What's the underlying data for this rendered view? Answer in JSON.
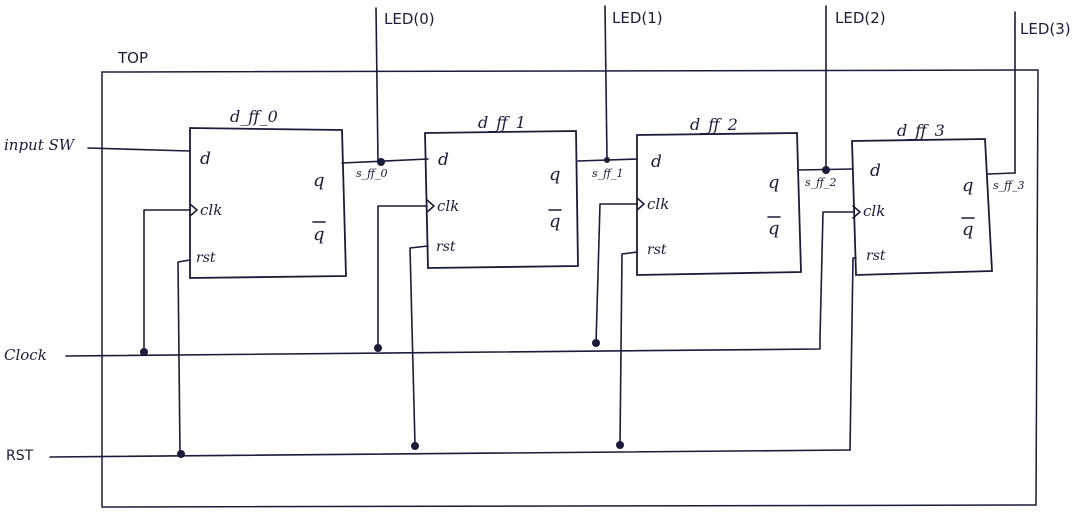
{
  "top_label": "TOP",
  "inputs": {
    "input_sw": "input SW",
    "clock": "Clock",
    "rst": "RST"
  },
  "leds": [
    "LED(0)",
    "LED(1)",
    "LED(2)",
    "LED(3)"
  ],
  "flipflops": [
    {
      "title": "d_ff_0",
      "d": "d",
      "clk": "clk",
      "rst": "rst",
      "q": "q",
      "qbar": "q",
      "signal": "s_ff_0"
    },
    {
      "title": "d_ff_1",
      "d": "d",
      "clk": "clk",
      "rst": "rst",
      "q": "q",
      "qbar": "q",
      "signal": "s_ff_1"
    },
    {
      "title": "d_ff_2",
      "d": "d",
      "clk": "clk",
      "rst": "rst",
      "q": "q",
      "qbar": "q",
      "signal": "s_ff_2"
    },
    {
      "title": "d_ff_3",
      "d": "d",
      "clk": "clk",
      "rst": "rst",
      "q": "q",
      "qbar": "q",
      "signal": "s_ff_3"
    }
  ]
}
